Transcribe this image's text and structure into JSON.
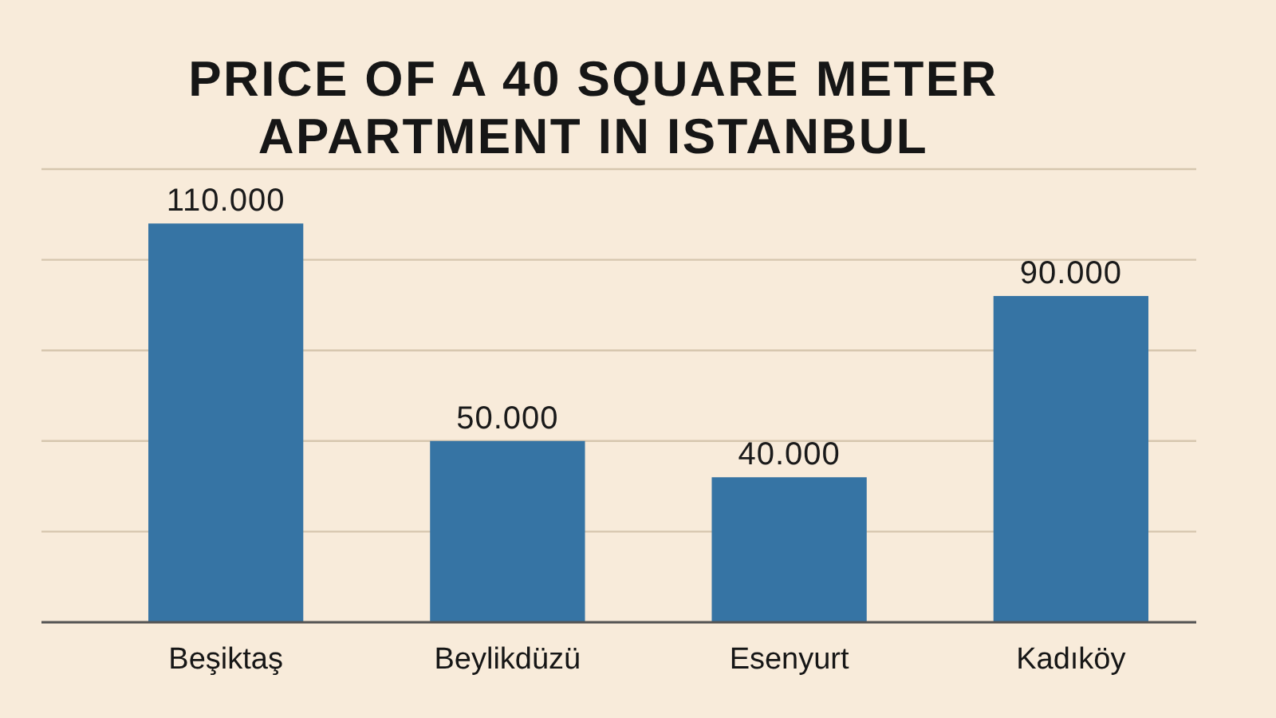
{
  "chart_data": {
    "type": "bar",
    "title": "PRICE OF A 40 SQUARE METER APARTMENT IN ISTANBUL",
    "categories": [
      "Beşiktaş",
      "Beylikdüzü",
      "Esenyurt",
      "Kadıköy"
    ],
    "values": [
      110000,
      50000,
      40000,
      90000
    ],
    "value_labels": [
      "110.000",
      "50.000",
      "40.000",
      "90.000"
    ],
    "color": "#3674a4",
    "ylim": [
      0,
      125000
    ],
    "yticks": [
      {
        "value": 0,
        "label": null
      },
      {
        "value": 25000,
        "label": null
      },
      {
        "value": 50000,
        "label": null
      },
      {
        "value": 75000,
        "label": null
      },
      {
        "value": 100000,
        "label": null
      },
      {
        "value": 125000,
        "label": null
      }
    ],
    "grid": "y",
    "tick_labels": "x"
  }
}
